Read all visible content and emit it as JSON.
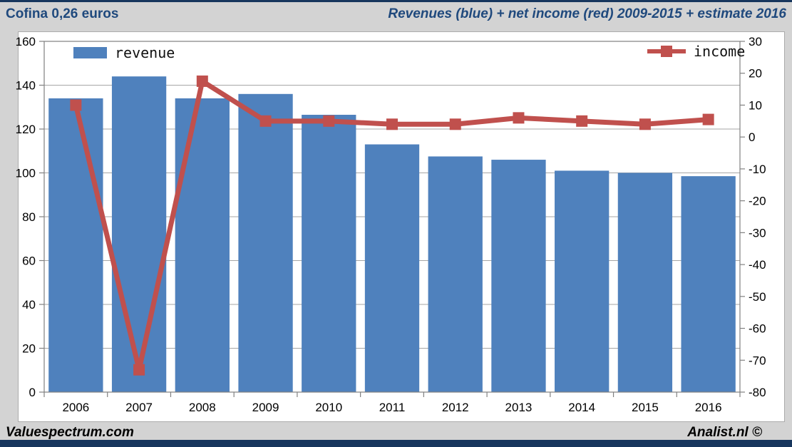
{
  "header": {
    "left_title": "Cofina 0,26 euros",
    "right_title": "Revenues (blue) + net income (red) 2009-2015 + estimate 2016"
  },
  "legend": {
    "revenue_label": "revenue",
    "income_label": "income"
  },
  "footer": {
    "left": "Valuespectrum.com",
    "right": "Analist.nl ©"
  },
  "colors": {
    "bar_blue": "#4f81bd",
    "line_red": "#c0504d",
    "title_blue": "#1f497d",
    "background_gray": "#d3d3d3",
    "navy_bar": "#17365d",
    "gridline": "#a6a6a6",
    "axis": "#808080"
  },
  "chart_data": {
    "type": "combo",
    "title": "Revenues (blue) + net income (red) 2009-2015 + estimate 2016",
    "categories": [
      "2006",
      "2007",
      "2008",
      "2009",
      "2010",
      "2011",
      "2012",
      "2013",
      "2014",
      "2015",
      "2016"
    ],
    "series": [
      {
        "name": "revenue",
        "type": "bar",
        "axis": "left",
        "color": "#4f81bd",
        "values": [
          134,
          144,
          134,
          136,
          126.5,
          113,
          107.5,
          106,
          101,
          100,
          98.5
        ]
      },
      {
        "name": "income",
        "type": "line",
        "axis": "right",
        "color": "#c0504d",
        "values": [
          10,
          -73,
          17.5,
          5,
          5,
          4,
          4,
          6,
          5,
          4,
          5.5
        ]
      }
    ],
    "left_axis": {
      "min": 0,
      "max": 160,
      "step": 20
    },
    "right_axis": {
      "min": -80,
      "max": 30,
      "step": 10
    },
    "grid": true,
    "legend_position": "top-inside"
  }
}
